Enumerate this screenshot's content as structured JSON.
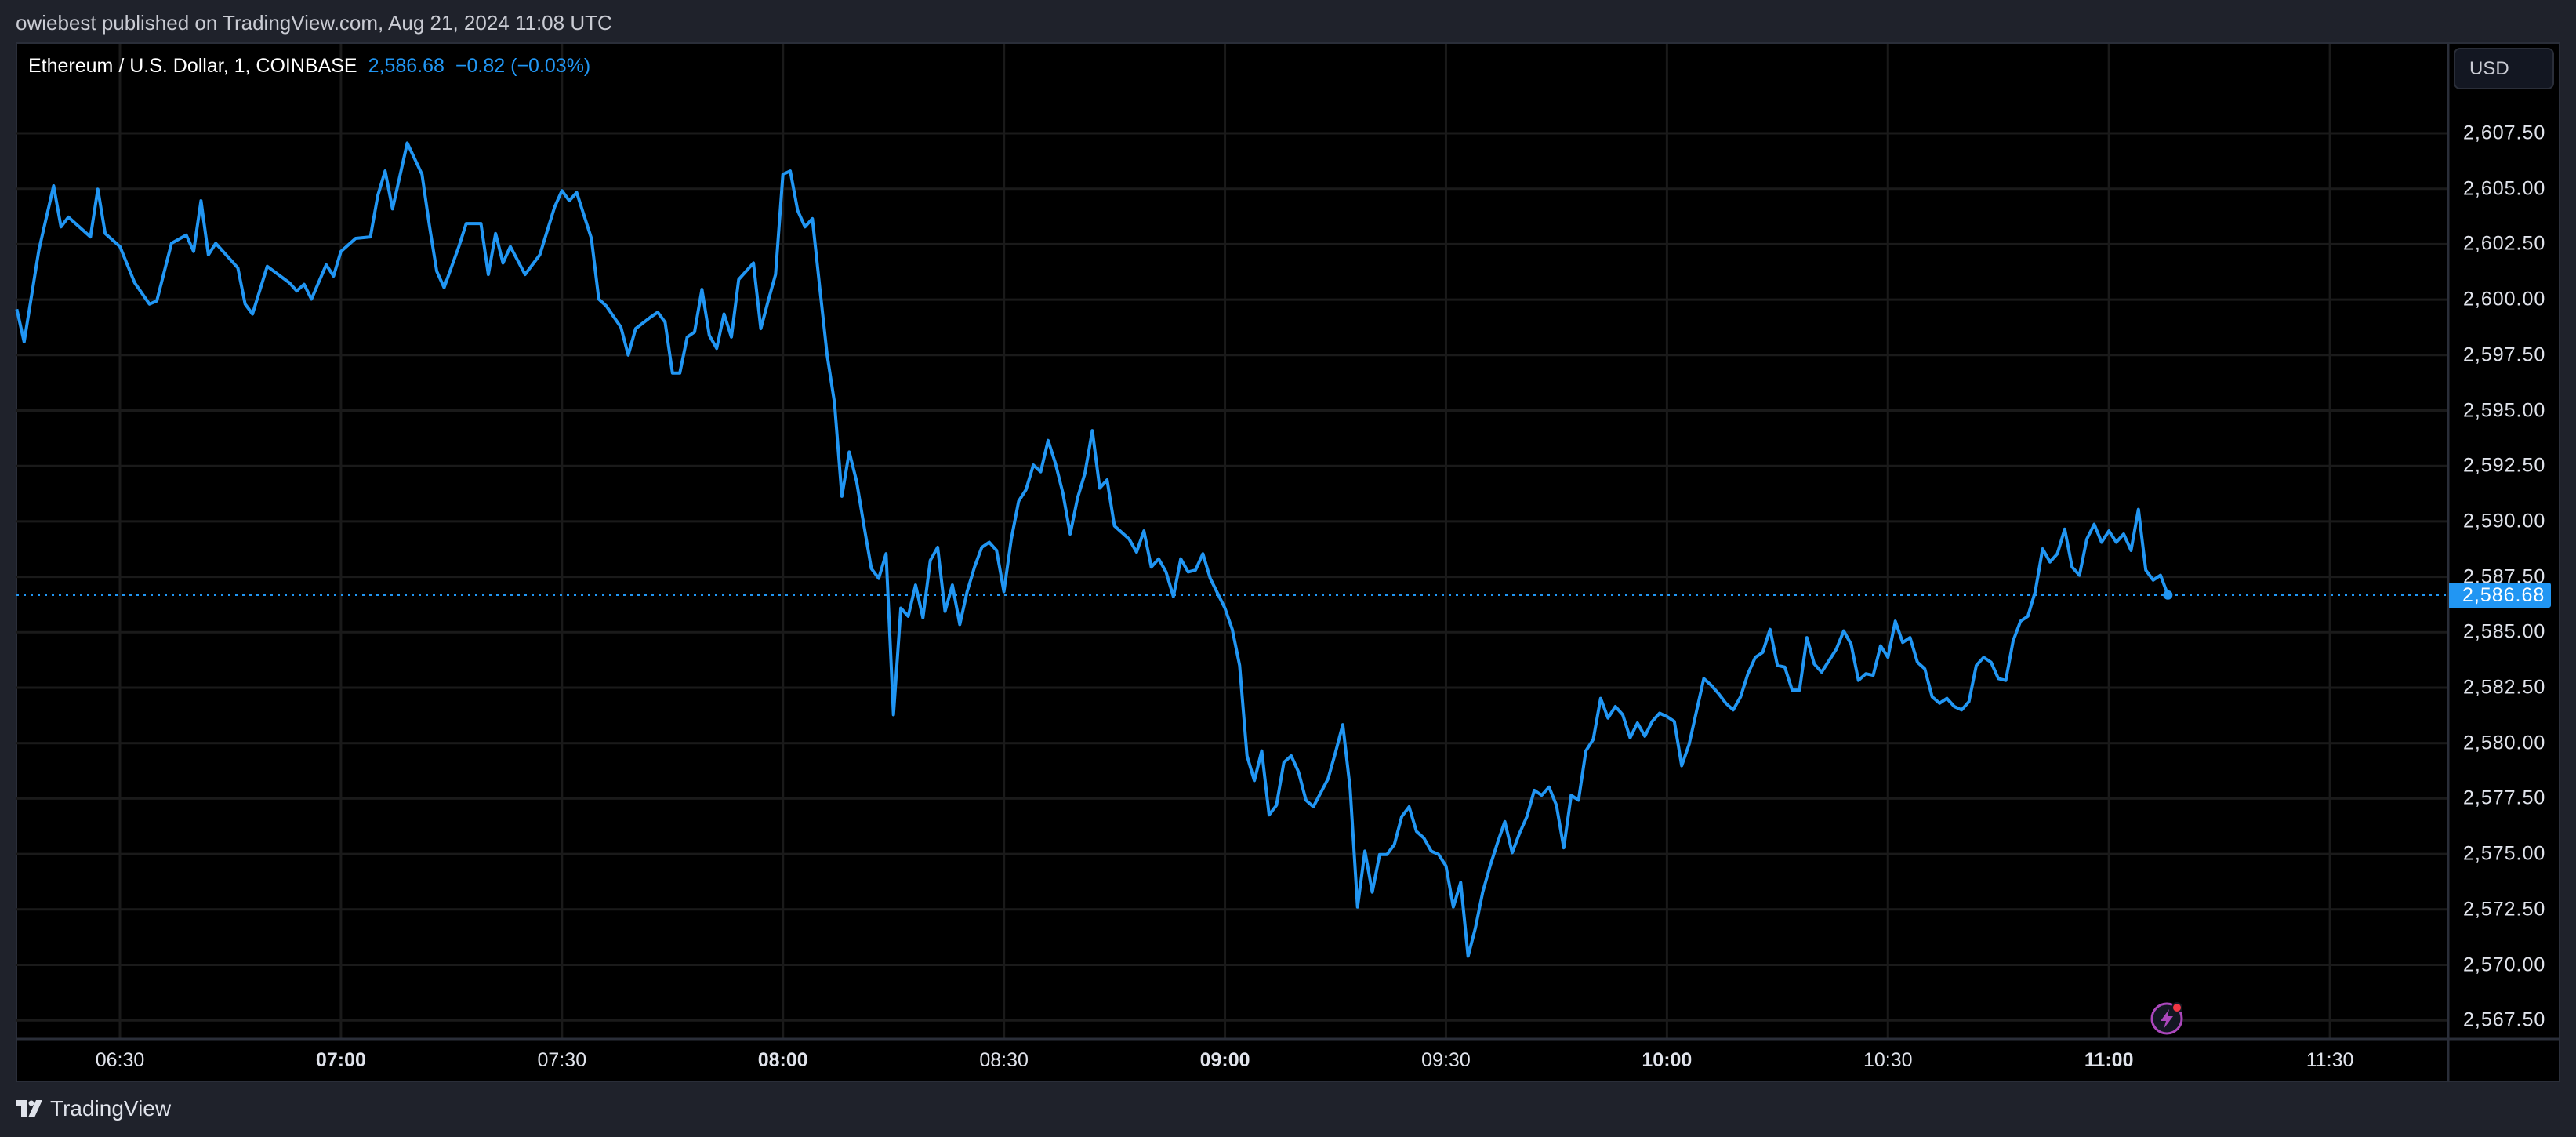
{
  "header": {
    "publisher_line": "owiebest published on TradingView.com, Aug 21, 2024 11:08 UTC"
  },
  "legend": {
    "symbol": "Ethereum / U.S. Dollar, 1, COINBASE",
    "last": "2,586.68",
    "change": "−0.82 (−0.03%)"
  },
  "price_scale": {
    "currency_button": "USD",
    "last_price_label": "2,586.68"
  },
  "footer": {
    "logo_text": "TradingView"
  },
  "icons": {
    "bolt": "lightning-bolt-icon",
    "logo": "tradingview-logo-icon"
  },
  "colors": {
    "line": "#2196f3",
    "background": "#000000",
    "grid": "#1a1a1a",
    "bolt": "#ab47bc",
    "badge": "#f23645"
  },
  "chart_data": {
    "type": "line",
    "title": "Ethereum / U.S. Dollar, 1, COINBASE",
    "xlabel": "",
    "ylabel": "",
    "ylim": [
      2566.5,
      2609.5
    ],
    "xlim": [
      "06:14",
      "11:50"
    ],
    "grid": true,
    "last_value": 2586.68,
    "yticks": [
      "2,567.50",
      "2,570.00",
      "2,572.50",
      "2,575.00",
      "2,577.50",
      "2,580.00",
      "2,582.50",
      "2,585.00",
      "2,587.50",
      "2,590.00",
      "2,592.50",
      "2,595.00",
      "2,597.50",
      "2,600.00",
      "2,602.50",
      "2,605.00",
      "2,607.50"
    ],
    "xticks": [
      {
        "label": "06:30",
        "bold": false
      },
      {
        "label": "07:00",
        "bold": true
      },
      {
        "label": "07:30",
        "bold": false
      },
      {
        "label": "08:00",
        "bold": true
      },
      {
        "label": "08:30",
        "bold": false
      },
      {
        "label": "09:00",
        "bold": true
      },
      {
        "label": "09:30",
        "bold": false
      },
      {
        "label": "10:00",
        "bold": true
      },
      {
        "label": "10:30",
        "bold": false
      },
      {
        "label": "11:00",
        "bold": true
      },
      {
        "label": "11:30",
        "bold": false
      }
    ],
    "x": [
      "06:16",
      "06:17",
      "06:19",
      "06:21",
      "06:22",
      "06:23",
      "06:26",
      "06:27",
      "06:28",
      "06:30",
      "06:32",
      "06:34",
      "06:35",
      "06:37",
      "06:39",
      "06:40",
      "06:41",
      "06:42",
      "06:43",
      "06:46",
      "06:47",
      "06:48",
      "06:50",
      "06:53",
      "06:54",
      "06:55",
      "06:56",
      "06:58",
      "06:59",
      "07:00",
      "07:02",
      "07:04",
      "07:05",
      "07:06",
      "07:07",
      "07:09",
      "07:11",
      "07:12",
      "07:13",
      "07:14",
      "07:16",
      "07:17",
      "07:19",
      "07:20",
      "07:21",
      "07:22",
      "07:23",
      "07:25",
      "07:27",
      "07:29",
      "07:30",
      "07:31",
      "07:32",
      "07:34",
      "07:35",
      "07:36",
      "07:38",
      "07:39",
      "07:40",
      "07:42",
      "07:43",
      "07:44",
      "07:45",
      "07:46",
      "07:47",
      "07:48",
      "07:49",
      "07:50",
      "07:51",
      "07:52",
      "07:53",
      "07:54",
      "07:56",
      "07:57",
      "07:58",
      "07:59",
      "08:00",
      "08:01",
      "08:02",
      "08:03",
      "08:04",
      "08:05",
      "08:06",
      "08:07",
      "08:08",
      "08:09",
      "08:10",
      "08:11",
      "08:12",
      "08:13",
      "08:14",
      "08:15",
      "08:16",
      "08:17",
      "08:18",
      "08:19",
      "08:20",
      "08:21",
      "08:22",
      "08:23",
      "08:24",
      "08:25",
      "08:26",
      "08:27",
      "08:28",
      "08:29",
      "08:30",
      "08:31",
      "08:32",
      "08:33",
      "08:34",
      "08:35",
      "08:36",
      "08:37",
      "08:38",
      "08:39",
      "08:40",
      "08:41",
      "08:42",
      "08:43",
      "08:44",
      "08:45",
      "08:47",
      "08:48",
      "08:49",
      "08:50",
      "08:51",
      "08:52",
      "08:53",
      "08:54",
      "08:55",
      "08:56",
      "08:57",
      "08:58",
      "09:00",
      "09:01",
      "09:02",
      "09:03",
      "09:04",
      "09:05",
      "09:06",
      "09:07",
      "09:08",
      "09:09",
      "09:10",
      "09:11",
      "09:12",
      "09:14",
      "09:15",
      "09:16",
      "09:17",
      "09:18",
      "09:19",
      "09:20",
      "09:21",
      "09:22",
      "09:23",
      "09:24",
      "09:25",
      "09:26",
      "09:27",
      "09:28",
      "09:29",
      "09:30",
      "09:31",
      "09:32",
      "09:33",
      "09:34",
      "09:35",
      "09:36",
      "09:37",
      "09:38",
      "09:39",
      "09:40",
      "09:41",
      "09:42",
      "09:43",
      "09:44",
      "09:45",
      "09:46",
      "09:47",
      "09:48",
      "09:49",
      "09:50",
      "09:51",
      "09:52",
      "09:53",
      "09:54",
      "09:55",
      "09:56",
      "09:57",
      "09:58",
      "09:59",
      "10:00",
      "10:01",
      "10:02",
      "10:03",
      "10:05",
      "10:06",
      "10:07",
      "10:08",
      "10:09",
      "10:10",
      "10:11",
      "10:12",
      "10:13",
      "10:14",
      "10:15",
      "10:16",
      "10:17",
      "10:18",
      "10:19",
      "10:20",
      "10:21",
      "10:22",
      "10:23",
      "10:24",
      "10:25",
      "10:26",
      "10:27",
      "10:28",
      "10:29",
      "10:30",
      "10:31",
      "10:32",
      "10:33",
      "10:34",
      "10:35",
      "10:36",
      "10:37",
      "10:38",
      "10:39",
      "10:40",
      "10:41",
      "10:42",
      "10:43",
      "10:44",
      "10:45",
      "10:46",
      "10:47",
      "10:48",
      "10:49",
      "10:50",
      "10:51",
      "10:52",
      "10:53",
      "10:54",
      "10:55",
      "10:56",
      "10:57",
      "10:58",
      "10:59",
      "11:00",
      "11:01",
      "11:02",
      "11:03",
      "11:04",
      "11:05",
      "11:06",
      "11:07",
      "11:08"
    ],
    "y": [
      2599.57,
      2598.09,
      2602.24,
      2605.13,
      2603.28,
      2603.72,
      2602.83,
      2604.98,
      2602.98,
      2602.39,
      2600.76,
      2599.8,
      2599.94,
      2602.54,
      2602.91,
      2602.17,
      2604.46,
      2602.02,
      2602.54,
      2601.43,
      2599.8,
      2599.35,
      2601.5,
      2600.76,
      2600.39,
      2600.69,
      2600.02,
      2601.57,
      2601.06,
      2602.17,
      2602.76,
      2602.83,
      2604.69,
      2605.8,
      2604.09,
      2607.06,
      2605.65,
      2603.35,
      2601.28,
      2600.54,
      2602.39,
      2603.43,
      2603.43,
      2601.13,
      2602.98,
      2601.65,
      2602.39,
      2601.13,
      2602.02,
      2604.17,
      2604.91,
      2604.46,
      2604.83,
      2602.76,
      2600.02,
      2599.72,
      2598.76,
      2597.5,
      2598.69,
      2599.2,
      2599.43,
      2598.98,
      2596.69,
      2596.69,
      2598.31,
      2598.54,
      2600.46,
      2598.39,
      2597.8,
      2599.35,
      2598.31,
      2600.91,
      2601.65,
      2598.69,
      2599.94,
      2601.13,
      2605.65,
      2605.8,
      2604.02,
      2603.28,
      2603.65,
      2600.54,
      2597.5,
      2595.35,
      2591.13,
      2593.13,
      2591.8,
      2589.8,
      2587.87,
      2587.43,
      2588.54,
      2581.28,
      2586.09,
      2585.72,
      2587.13,
      2585.65,
      2588.24,
      2588.83,
      2585.94,
      2587.13,
      2585.35,
      2586.83,
      2587.94,
      2588.83,
      2589.06,
      2588.69,
      2586.83,
      2589.2,
      2590.91,
      2591.43,
      2592.54,
      2592.24,
      2593.65,
      2592.61,
      2591.28,
      2589.43,
      2591.06,
      2592.17,
      2594.09,
      2591.5,
      2591.87,
      2589.8,
      2589.2,
      2588.61,
      2589.57,
      2587.94,
      2588.31,
      2587.72,
      2586.61,
      2588.31,
      2587.72,
      2587.8,
      2588.54,
      2587.43,
      2586.09,
      2585.13,
      2583.5,
      2579.43,
      2578.31,
      2579.65,
      2576.76,
      2577.2,
      2579.13,
      2579.43,
      2578.69,
      2577.43,
      2577.13,
      2578.39,
      2579.57,
      2580.83,
      2577.94,
      2572.61,
      2575.13,
      2573.28,
      2574.98,
      2574.98,
      2575.43,
      2576.69,
      2577.13,
      2576.02,
      2575.72,
      2575.13,
      2574.98,
      2574.46,
      2572.61,
      2573.72,
      2570.39,
      2571.65,
      2573.28,
      2574.46,
      2575.5,
      2576.46,
      2575.06,
      2575.94,
      2576.69,
      2577.87,
      2577.65,
      2578.02,
      2577.2,
      2575.28,
      2577.65,
      2577.43,
      2579.65,
      2580.17,
      2582.02,
      2581.13,
      2581.65,
      2581.28,
      2580.24,
      2580.91,
      2580.31,
      2580.98,
      2581.35,
      2581.2,
      2580.98,
      2578.98,
      2579.94,
      2582.91,
      2582.61,
      2582.24,
      2581.8,
      2581.5,
      2582.09,
      2583.13,
      2583.87,
      2584.09,
      2585.13,
      2583.5,
      2583.43,
      2582.39,
      2582.39,
      2584.76,
      2583.57,
      2583.2,
      2583.72,
      2584.24,
      2585.06,
      2584.46,
      2582.83,
      2583.13,
      2583.06,
      2584.39,
      2583.87,
      2585.5,
      2584.54,
      2584.76,
      2583.65,
      2583.35,
      2582.09,
      2581.8,
      2582.02,
      2581.65,
      2581.5,
      2581.87,
      2583.5,
      2583.87,
      2583.65,
      2582.91,
      2582.83,
      2584.61,
      2585.5,
      2585.72,
      2586.83,
      2588.76,
      2588.17,
      2588.54,
      2589.65,
      2587.94,
      2587.57,
      2589.2,
      2589.87,
      2589.06,
      2589.57,
      2589.06,
      2589.43,
      2588.69,
      2590.54,
      2587.8,
      2587.35,
      2587.57,
      2586.68
    ]
  }
}
